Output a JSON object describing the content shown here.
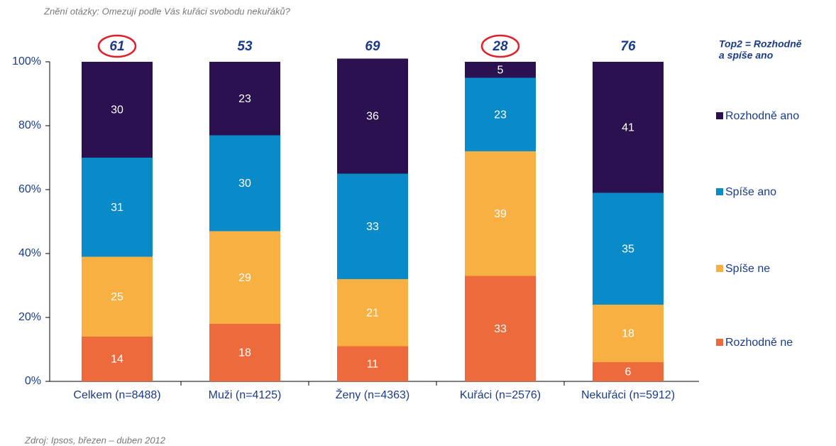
{
  "chart_data": {
    "type": "stacked_bar",
    "title": "Znění otázky: Omezují podle Vás kuřáci svobodu nekuřáků?",
    "source": "Zdroj: Ipsos, březen – duben 2012",
    "categories": [
      "Celkem (n=8488)",
      "Muži (n=4125)",
      "Ženy (n=4363)",
      "Kuřáci (n=2576)",
      "Nekuřáci (n=5912)"
    ],
    "series": [
      {
        "name": "Rozhodně ne",
        "color": "#ec6a3c",
        "values": [
          14,
          18,
          11,
          33,
          6
        ]
      },
      {
        "name": "Spíše ne",
        "color": "#f8b042",
        "values": [
          25,
          29,
          21,
          39,
          18
        ]
      },
      {
        "name": "Spíše ano",
        "color": "#0a8bc9",
        "values": [
          31,
          30,
          33,
          23,
          35
        ]
      },
      {
        "name": "Rozhodně ano",
        "color": "#2b1150",
        "values": [
          30,
          23,
          36,
          5,
          41
        ]
      }
    ],
    "top2_label": [
      "Top2 = Rozhodně",
      "a spíše ano"
    ],
    "top2": [
      61,
      53,
      69,
      28,
      76
    ],
    "circled": [
      0,
      3
    ],
    "ylim": [
      0,
      100
    ],
    "yticks": [
      {
        "value": 0,
        "label": "0%"
      },
      {
        "value": 20,
        "label": "20%"
      },
      {
        "value": 40,
        "label": "40%"
      },
      {
        "value": 60,
        "label": "60%"
      },
      {
        "value": 80,
        "label": "80%"
      },
      {
        "value": 100,
        "label": "100%"
      }
    ]
  }
}
